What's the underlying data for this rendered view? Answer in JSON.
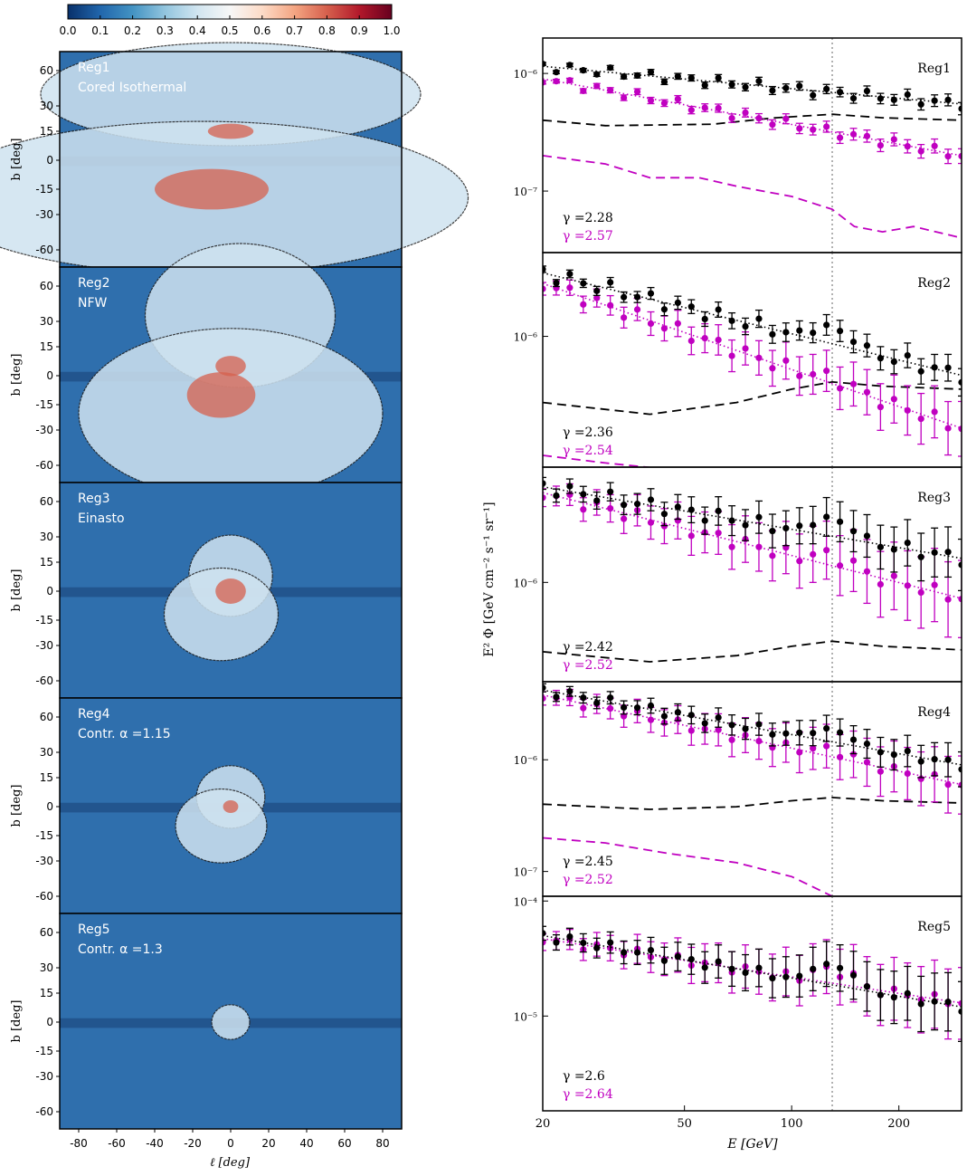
{
  "colorbar": {
    "ticks": [
      "0.0",
      "0.1",
      "0.2",
      "0.3",
      "0.4",
      "0.5",
      "0.6",
      "0.7",
      "0.8",
      "0.9",
      "1.0"
    ],
    "colors": [
      "#08306b",
      "#2166ac",
      "#4393c3",
      "#92c5de",
      "#d1e5f0",
      "#f7f7f7",
      "#fddbc7",
      "#f4a582",
      "#d6604d",
      "#b2182b",
      "#67001f"
    ]
  },
  "maps": {
    "xlabel": "ℓ [deg]",
    "ylabel": "b [deg]",
    "xticks": [
      "-80",
      "-60",
      "-40",
      "-20",
      "0",
      "20",
      "40",
      "60",
      "80"
    ],
    "yticks": [
      "60",
      "30",
      "15",
      "0",
      "-15",
      "-30",
      "-60"
    ],
    "panels": [
      {
        "name": "Reg1",
        "model": "Cored Isothermal"
      },
      {
        "name": "Reg2",
        "model": "NFW"
      },
      {
        "name": "Reg3",
        "model": "Einasto"
      },
      {
        "name": "Reg4",
        "model": "Contr. α =1.15"
      },
      {
        "name": "Reg5",
        "model": "Contr. α =1.3"
      }
    ]
  },
  "chart_data": {
    "type": "scatter",
    "xlabel": "E [GeV]",
    "ylabel": "E² Φ [GeV cm⁻² s⁻¹ sr⁻¹]",
    "xscale": "log",
    "yscale": "log",
    "xlim": [
      20,
      300
    ],
    "xticks": [
      20,
      50,
      100,
      200
    ],
    "vline": 130,
    "colors": {
      "black": "#000000",
      "magenta": "#c000c0",
      "vline": "#999999"
    },
    "panels": [
      {
        "name": "Reg1",
        "ylim": [
          3e-08,
          2e-06
        ],
        "yticklabels": [
          {
            "v": 1e-06,
            "t": "10⁻⁶"
          },
          {
            "v": 1e-07,
            "t": "10⁻⁷"
          }
        ],
        "gamma_black": "γ =2.28",
        "gamma_magenta": "γ =2.57",
        "black": {
          "start": 1.15e-06,
          "end": 5.5e-07,
          "err": 0.1,
          "bump": 0.0
        },
        "magenta": {
          "start": 9e-07,
          "end": 2e-07,
          "err": 0.12,
          "bump": 0.0
        },
        "black_dashed": [
          [
            20,
            4e-07
          ],
          [
            30,
            3.6e-07
          ],
          [
            60,
            3.7e-07
          ],
          [
            90,
            4.2e-07
          ],
          [
            130,
            4.5e-07
          ],
          [
            180,
            4.2e-07
          ],
          [
            300,
            4e-07
          ]
        ],
        "magenta_dashed": [
          [
            20,
            2e-07
          ],
          [
            30,
            1.7e-07
          ],
          [
            40,
            1.3e-07
          ],
          [
            55,
            1.3e-07
          ],
          [
            70,
            1.1e-07
          ],
          [
            100,
            9e-08
          ],
          [
            130,
            7e-08
          ],
          [
            150,
            5e-08
          ],
          [
            180,
            4.5e-08
          ],
          [
            220,
            5e-08
          ],
          [
            300,
            4e-08
          ]
        ]
      },
      {
        "name": "Reg2",
        "ylim": [
          1.8e-07,
          3e-06
        ],
        "yticklabels": [
          {
            "v": 1e-06,
            "t": "10⁻⁶"
          }
        ],
        "gamma_black": "γ =2.36",
        "gamma_magenta": "γ =2.54",
        "black": {
          "start": 2.3e-06,
          "end": 6e-07,
          "err": 0.15,
          "bump": 0.3
        },
        "magenta": {
          "start": 2e-06,
          "end": 3e-07,
          "err": 0.3,
          "bump": 0.1
        },
        "black_dashed": [
          [
            20,
            4.2e-07
          ],
          [
            40,
            3.6e-07
          ],
          [
            70,
            4.2e-07
          ],
          [
            100,
            5e-07
          ],
          [
            130,
            5.5e-07
          ],
          [
            180,
            5.2e-07
          ],
          [
            300,
            5e-07
          ]
        ],
        "magenta_dashed": [
          [
            20,
            2.1e-07
          ],
          [
            30,
            1.9e-07
          ],
          [
            45,
            1.75e-07
          ],
          [
            70,
            1.75e-07
          ],
          [
            100,
            1.5e-07
          ]
        ]
      },
      {
        "name": "Reg3",
        "ylim": [
          2.5e-07,
          5e-06
        ],
        "yticklabels": [
          {
            "v": 1e-06,
            "t": "10⁻⁶"
          }
        ],
        "gamma_black": "γ =2.42",
        "gamma_magenta": "γ =2.52",
        "black": {
          "start": 3.8e-06,
          "end": 1.4e-06,
          "err": 0.3,
          "bump": 0.35
        },
        "magenta": {
          "start": 3.5e-06,
          "end": 8e-07,
          "err": 0.45,
          "bump": 0.2
        },
        "black_dashed": [
          [
            20,
            3.8e-07
          ],
          [
            40,
            3.3e-07
          ],
          [
            70,
            3.6e-07
          ],
          [
            100,
            4.1e-07
          ],
          [
            130,
            4.4e-07
          ],
          [
            180,
            4.1e-07
          ],
          [
            300,
            3.9e-07
          ]
        ],
        "magenta_dashed": []
      },
      {
        "name": "Reg4",
        "ylim": [
          6e-08,
          5e-06
        ],
        "yticklabels": [
          {
            "v": 1e-06,
            "t": "10⁻⁶"
          },
          {
            "v": 1e-07,
            "t": "10⁻⁷"
          }
        ],
        "gamma_black": "γ =2.45",
        "gamma_magenta": "γ =2.52",
        "black": {
          "start": 4.2e-06,
          "end": 9e-07,
          "err": 0.3,
          "bump": 0.35
        },
        "magenta": {
          "start": 3.8e-06,
          "end": 6e-07,
          "err": 0.5,
          "bump": 0.2
        },
        "black_dashed": [
          [
            20,
            4e-07
          ],
          [
            40,
            3.6e-07
          ],
          [
            70,
            3.8e-07
          ],
          [
            100,
            4.3e-07
          ],
          [
            130,
            4.6e-07
          ],
          [
            180,
            4.3e-07
          ],
          [
            300,
            4.1e-07
          ]
        ],
        "magenta_dashed": [
          [
            20,
            2e-07
          ],
          [
            30,
            1.8e-07
          ],
          [
            45,
            1.45e-07
          ],
          [
            70,
            1.2e-07
          ],
          [
            100,
            9e-08
          ],
          [
            130,
            6e-08
          ]
        ]
      },
      {
        "name": "Reg5",
        "ylim": [
          1.5e-06,
          0.00011
        ],
        "yticklabels": [
          {
            "v": 0.0001,
            "t": "10⁻⁴"
          },
          {
            "v": 1e-05,
            "t": "10⁻⁵"
          }
        ],
        "gamma_black": "γ =2.6",
        "gamma_magenta": "γ =2.64",
        "black": {
          "start": 5e-05,
          "end": 1.2e-05,
          "err": 0.5,
          "bump": 0.6
        },
        "magenta": {
          "start": 4.7e-05,
          "end": 1.3e-05,
          "err": 0.6,
          "bump": 0.4
        },
        "black_dashed": [],
        "magenta_dashed": []
      }
    ]
  }
}
